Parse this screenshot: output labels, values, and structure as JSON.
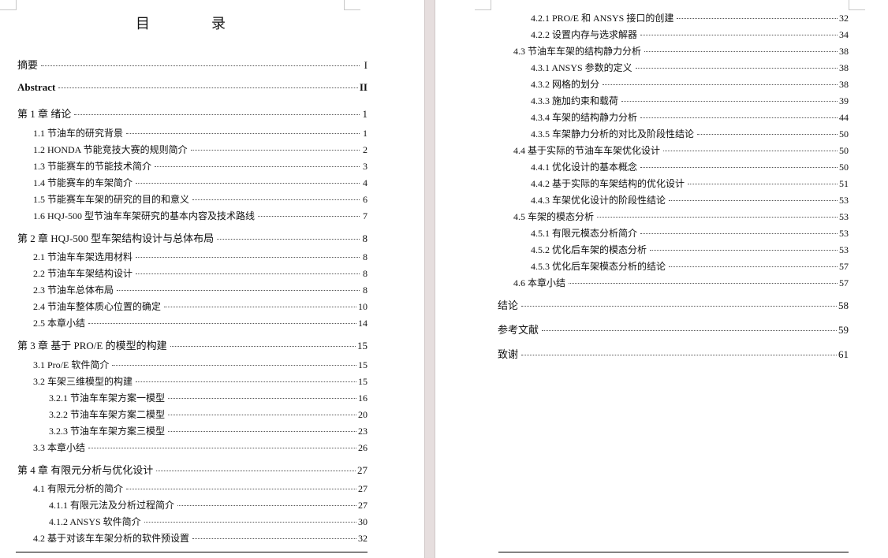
{
  "title": "目　录",
  "page1": [
    {
      "label": "摘要",
      "page": "I",
      "level": 1
    },
    {
      "label": "Abstract",
      "page": "II",
      "level": 1,
      "bold": true
    },
    {
      "label": "第 1 章  绪论",
      "page": "1",
      "level": 1
    },
    {
      "label": "1.1  节油车的研究背景",
      "page": "1",
      "level": 2
    },
    {
      "label": "1.2  HONDA 节能竞技大赛的规则简介",
      "page": "2",
      "level": 2
    },
    {
      "label": "1.3 节能赛车的节能技术简介",
      "page": "3",
      "level": 2
    },
    {
      "label": "1.4 节能赛车的车架简介",
      "page": "4",
      "level": 2
    },
    {
      "label": "1.5 节能赛车车架的研究的目的和意义",
      "page": "6",
      "level": 2
    },
    {
      "label": "1.6 HQJ-500 型节油车车架研究的基本内容及技术路线",
      "page": "7",
      "level": 2
    },
    {
      "label": "第 2 章  HQJ-500 型车架结构设计与总体布局",
      "page": "8",
      "level": 1
    },
    {
      "label": "2.1  节油车车架选用材料",
      "page": "8",
      "level": 2
    },
    {
      "label": "2.2  节油车车架结构设计",
      "page": "8",
      "level": 2
    },
    {
      "label": "2.3  节油车总体布局",
      "page": "8",
      "level": 2
    },
    {
      "label": "2.4  节油车整体质心位置的确定",
      "page": "10",
      "level": 2
    },
    {
      "label": "2.5  本章小结",
      "page": "14",
      "level": 2
    },
    {
      "label": "第 3 章  基于 PRO/E 的模型的构建",
      "page": "15",
      "level": 1
    },
    {
      "label": "3.1  Pro/E 软件简介",
      "page": "15",
      "level": 2
    },
    {
      "label": "3.2  车架三维模型的构建",
      "page": "15",
      "level": 2
    },
    {
      "label": "3.2.1  节油车车架方案一模型",
      "page": "16",
      "level": 3
    },
    {
      "label": "3.2.2  节油车车架方案二模型",
      "page": "20",
      "level": 3
    },
    {
      "label": "3.2.3  节油车车架方案三模型",
      "page": "23",
      "level": 3
    },
    {
      "label": "3.3  本章小结",
      "page": "26",
      "level": 2
    },
    {
      "label": "第 4 章  有限元分析与优化设计",
      "page": "27",
      "level": 1
    },
    {
      "label": "4.1  有限元分析的简介",
      "page": "27",
      "level": 2
    },
    {
      "label": "4.1.1  有限元法及分析过程简介",
      "page": "27",
      "level": 3
    },
    {
      "label": "4.1.2  ANSYS 软件简介",
      "page": "30",
      "level": 3
    },
    {
      "label": "4.2  基于对该车车架分析的软件预设置",
      "page": "32",
      "level": 2
    }
  ],
  "page2": [
    {
      "label": "4.2.1 PRO/E 和 ANSYS 接口的创建",
      "page": "32",
      "level": 3
    },
    {
      "label": "4.2.2  设置内存与选求解器",
      "page": "34",
      "level": 3
    },
    {
      "label": "4.3  节油车车架的结构静力分析",
      "page": "38",
      "level": 2
    },
    {
      "label": "4.3.1  ANSYS 参数的定义",
      "page": "38",
      "level": 3
    },
    {
      "label": "4.3.2  网格的划分",
      "page": "38",
      "level": 3
    },
    {
      "label": "4.3.3  施加约束和载荷",
      "page": "39",
      "level": 3
    },
    {
      "label": "4.3.4  车架的结构静力分析",
      "page": "44",
      "level": 3
    },
    {
      "label": "4.3.5  车架静力分析的对比及阶段性结论",
      "page": "50",
      "level": 3
    },
    {
      "label": "4.4  基于实际的节油车车架优化设计",
      "page": "50",
      "level": 2
    },
    {
      "label": "4.4.1  优化设计的基本概念",
      "page": "50",
      "level": 3
    },
    {
      "label": "4.4.2  基于实际的车架结构的优化设计",
      "page": "51",
      "level": 3
    },
    {
      "label": "4.4.3  车架优化设计的阶段性结论",
      "page": "53",
      "level": 3
    },
    {
      "label": "4.5  车架的模态分析",
      "page": "53",
      "level": 2
    },
    {
      "label": "4.5.1  有限元模态分析简介",
      "page": "53",
      "level": 3
    },
    {
      "label": "4.5.2  优化后车架的模态分析",
      "page": "53",
      "level": 3
    },
    {
      "label": "4.5.3  优化后车架模态分析的结论",
      "page": "57",
      "level": 3
    },
    {
      "label": "4.6  本章小结",
      "page": "57",
      "level": 2
    },
    {
      "label": "结论",
      "page": "58",
      "level": 1
    },
    {
      "label": "参考文献",
      "page": "59",
      "level": 1
    },
    {
      "label": "致谢",
      "page": "61",
      "level": 1
    }
  ]
}
